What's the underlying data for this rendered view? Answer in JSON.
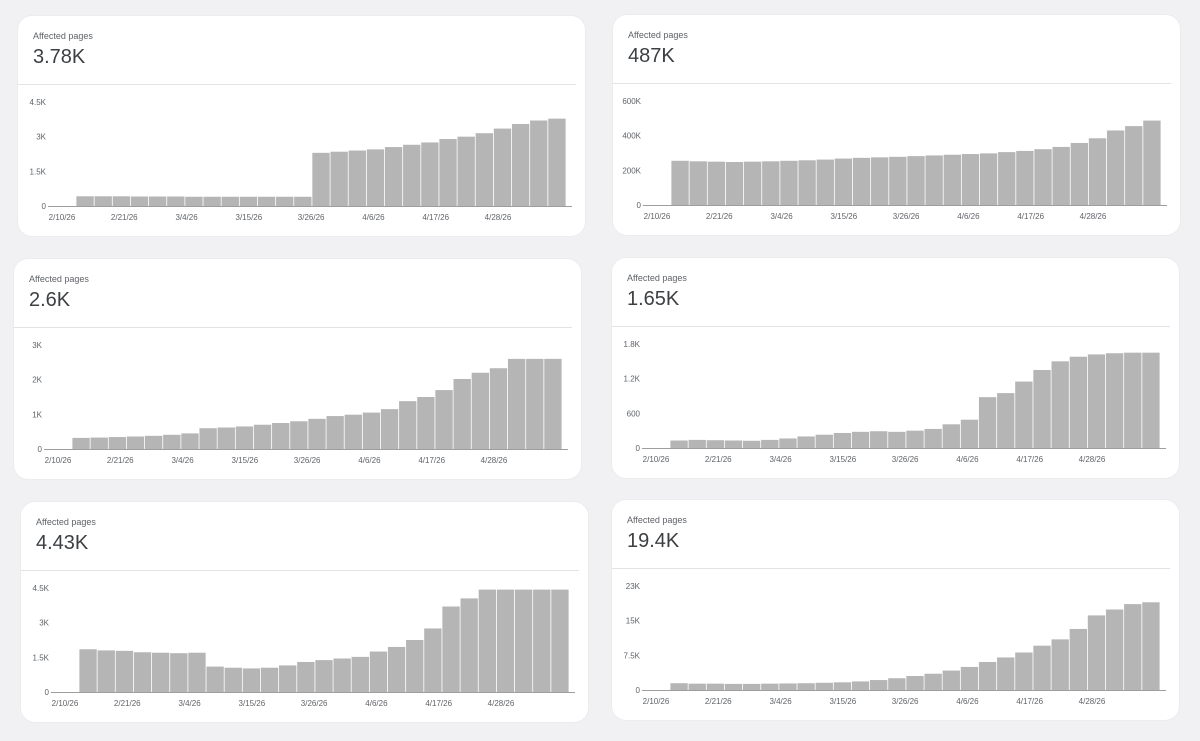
{
  "colors": {
    "bar": "#b5b5b5",
    "axis": "#9e9e9e",
    "text": "#5f6368",
    "card": "#ffffff",
    "background": "#f1f1f3"
  },
  "cards": [
    {
      "label": "Affected pages",
      "value": "3.78K"
    },
    {
      "label": "Affected pages",
      "value": "487K"
    },
    {
      "label": "Affected pages",
      "value": "2.6K"
    },
    {
      "label": "Affected pages",
      "value": "1.65K"
    },
    {
      "label": "Affected pages",
      "value": "4.43K"
    },
    {
      "label": "Affected pages",
      "value": "19.4K"
    }
  ],
  "chart_data": [
    {
      "type": "bar",
      "title": "",
      "xlabel": "",
      "ylabel": "Affected pages",
      "x_ticks": [
        "2/10/26",
        "2/21/26",
        "3/4/26",
        "3/15/26",
        "3/26/26",
        "4/6/26",
        "4/17/26",
        "4/28/26"
      ],
      "y_ticks": [
        "0",
        "1.5K",
        "3K",
        "4.5K"
      ],
      "ylim": [
        0,
        4500
      ],
      "grid": false,
      "categories": [
        "2/13/26",
        "2/16/26",
        "2/19/26",
        "2/22/26",
        "2/25/26",
        "2/28/26",
        "3/3/26",
        "3/6/26",
        "3/9/26",
        "3/12/26",
        "3/15/26",
        "3/18/26",
        "3/21/26",
        "3/24/26",
        "3/27/26",
        "3/30/26",
        "4/2/26",
        "4/5/26",
        "4/8/26",
        "4/11/26",
        "4/14/26",
        "4/17/26",
        "4/20/26",
        "4/23/26",
        "4/26/26",
        "4/29/26",
        "5/2/26"
      ],
      "values": [
        420,
        420,
        420,
        410,
        410,
        410,
        400,
        400,
        400,
        400,
        400,
        400,
        400,
        2300,
        2350,
        2400,
        2450,
        2550,
        2650,
        2750,
        2900,
        3000,
        3150,
        3350,
        3550,
        3700,
        3780
      ]
    },
    {
      "type": "bar",
      "title": "",
      "xlabel": "",
      "ylabel": "Affected pages",
      "x_ticks": [
        "2/10/26",
        "2/21/26",
        "3/4/26",
        "3/15/26",
        "3/26/26",
        "4/6/26",
        "4/17/26",
        "4/28/26"
      ],
      "y_ticks": [
        "0",
        "200K",
        "400K",
        "600K"
      ],
      "ylim": [
        0,
        600000
      ],
      "grid": false,
      "categories": [
        "2/13/26",
        "2/16/26",
        "2/19/26",
        "2/22/26",
        "2/25/26",
        "2/28/26",
        "3/3/26",
        "3/6/26",
        "3/9/26",
        "3/12/26",
        "3/15/26",
        "3/18/26",
        "3/21/26",
        "3/24/26",
        "3/27/26",
        "3/30/26",
        "4/2/26",
        "4/5/26",
        "4/8/26",
        "4/11/26",
        "4/14/26",
        "4/17/26",
        "4/20/26",
        "4/23/26",
        "4/26/26",
        "4/29/26",
        "5/2/26"
      ],
      "values": [
        255000,
        252000,
        250000,
        248000,
        250000,
        252000,
        255000,
        258000,
        262000,
        268000,
        272000,
        275000,
        278000,
        282000,
        286000,
        290000,
        294000,
        298000,
        305000,
        312000,
        322000,
        335000,
        358000,
        385000,
        430000,
        455000,
        487000
      ]
    },
    {
      "type": "bar",
      "title": "",
      "xlabel": "",
      "ylabel": "Affected pages",
      "x_ticks": [
        "2/10/26",
        "2/21/26",
        "3/4/26",
        "3/15/26",
        "3/26/26",
        "4/6/26",
        "4/17/26",
        "4/28/26"
      ],
      "y_ticks": [
        "0",
        "1K",
        "2K",
        "3K"
      ],
      "ylim": [
        0,
        3000
      ],
      "grid": false,
      "categories": [
        "2/13/26",
        "2/16/26",
        "2/19/26",
        "2/22/26",
        "2/25/26",
        "2/28/26",
        "3/3/26",
        "3/6/26",
        "3/9/26",
        "3/12/26",
        "3/15/26",
        "3/18/26",
        "3/21/26",
        "3/24/26",
        "3/27/26",
        "3/30/26",
        "4/2/26",
        "4/5/26",
        "4/8/26",
        "4/11/26",
        "4/14/26",
        "4/17/26",
        "4/20/26",
        "4/23/26",
        "4/26/26",
        "4/29/26",
        "5/2/26"
      ],
      "values": [
        320,
        330,
        345,
        360,
        380,
        410,
        450,
        600,
        620,
        650,
        700,
        750,
        800,
        870,
        950,
        990,
        1050,
        1150,
        1380,
        1500,
        1700,
        2020,
        2200,
        2330,
        2600,
        2600,
        2600
      ]
    },
    {
      "type": "bar",
      "title": "",
      "xlabel": "",
      "ylabel": "Affected pages",
      "x_ticks": [
        "2/10/26",
        "2/21/26",
        "3/4/26",
        "3/15/26",
        "3/26/26",
        "4/6/26",
        "4/17/26",
        "4/28/26"
      ],
      "y_ticks": [
        "0",
        "600",
        "1.2K",
        "1.8K"
      ],
      "ylim": [
        0,
        1800
      ],
      "grid": false,
      "categories": [
        "2/13/26",
        "2/16/26",
        "2/19/26",
        "2/22/26",
        "2/25/26",
        "2/28/26",
        "3/3/26",
        "3/6/26",
        "3/9/26",
        "3/12/26",
        "3/15/26",
        "3/18/26",
        "3/21/26",
        "3/24/26",
        "3/27/26",
        "3/30/26",
        "4/2/26",
        "4/5/26",
        "4/8/26",
        "4/11/26",
        "4/14/26",
        "4/17/26",
        "4/20/26",
        "4/23/26",
        "4/26/26",
        "4/29/26",
        "5/2/26"
      ],
      "values": [
        130,
        140,
        135,
        130,
        125,
        140,
        165,
        200,
        230,
        260,
        280,
        290,
        280,
        300,
        330,
        410,
        490,
        880,
        950,
        1150,
        1350,
        1500,
        1580,
        1620,
        1640,
        1650,
        1650
      ]
    },
    {
      "type": "bar",
      "title": "",
      "xlabel": "",
      "ylabel": "Affected pages",
      "x_ticks": [
        "2/10/26",
        "2/21/26",
        "3/4/26",
        "3/15/26",
        "3/26/26",
        "4/6/26",
        "4/17/26",
        "4/28/26"
      ],
      "y_ticks": [
        "0",
        "1.5K",
        "3K",
        "4.5K"
      ],
      "ylim": [
        0,
        4500
      ],
      "grid": false,
      "categories": [
        "2/13/26",
        "2/16/26",
        "2/19/26",
        "2/22/26",
        "2/25/26",
        "2/28/26",
        "3/3/26",
        "3/6/26",
        "3/9/26",
        "3/12/26",
        "3/15/26",
        "3/18/26",
        "3/21/26",
        "3/24/26",
        "3/27/26",
        "3/30/26",
        "4/2/26",
        "4/5/26",
        "4/8/26",
        "4/11/26",
        "4/14/26",
        "4/17/26",
        "4/20/26",
        "4/23/26",
        "4/26/26",
        "4/29/26",
        "5/2/26"
      ],
      "values": [
        1850,
        1800,
        1780,
        1720,
        1700,
        1680,
        1700,
        1100,
        1050,
        1020,
        1050,
        1150,
        1300,
        1380,
        1450,
        1520,
        1750,
        1950,
        2250,
        2750,
        3700,
        4050,
        4430,
        4430,
        4430,
        4430,
        4430
      ]
    },
    {
      "type": "bar",
      "title": "",
      "xlabel": "",
      "ylabel": "Affected pages",
      "x_ticks": [
        "2/10/26",
        "2/21/26",
        "3/4/26",
        "3/15/26",
        "3/26/26",
        "4/6/26",
        "4/17/26",
        "4/28/26"
      ],
      "y_ticks": [
        "0",
        "7.5K",
        "15K",
        "23K"
      ],
      "ylim": [
        0,
        23000
      ],
      "grid": false,
      "categories": [
        "2/13/26",
        "2/16/26",
        "2/19/26",
        "2/22/26",
        "2/25/26",
        "2/28/26",
        "3/3/26",
        "3/6/26",
        "3/9/26",
        "3/12/26",
        "3/15/26",
        "3/18/26",
        "3/21/26",
        "3/24/26",
        "3/27/26",
        "3/30/26",
        "4/2/26",
        "4/5/26",
        "4/8/26",
        "4/11/26",
        "4/14/26",
        "4/17/26",
        "4/20/26",
        "4/23/26",
        "4/26/26",
        "4/29/26",
        "5/2/26"
      ],
      "values": [
        1500,
        1400,
        1400,
        1350,
        1350,
        1400,
        1450,
        1500,
        1600,
        1700,
        1900,
        2200,
        2600,
        3100,
        3600,
        4300,
        5100,
        6200,
        7200,
        8300,
        9800,
        11200,
        13500,
        16500,
        17800,
        19000,
        19400
      ]
    }
  ]
}
